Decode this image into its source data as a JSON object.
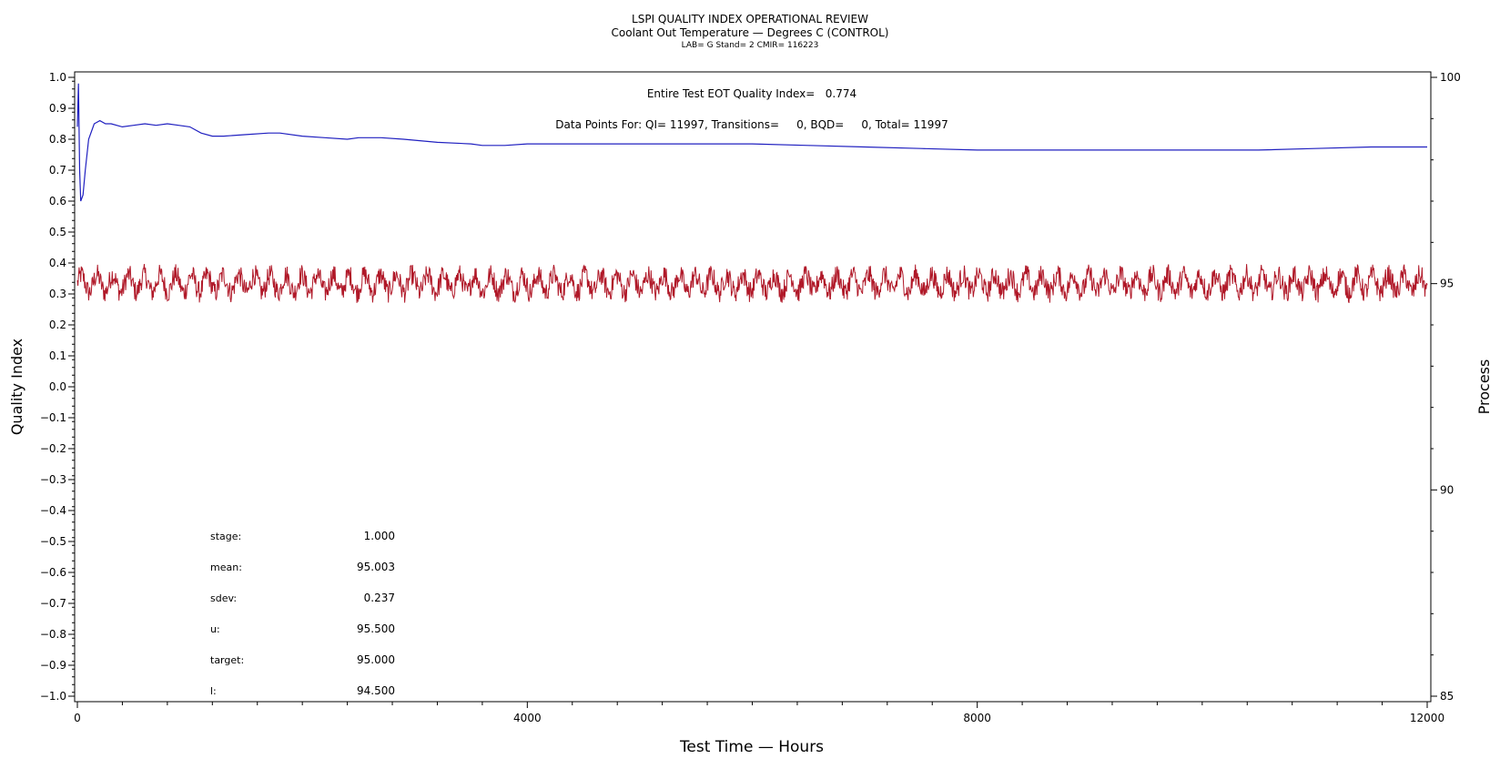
{
  "chart_data": {
    "type": "line",
    "title": "LSPI QUALITY INDEX OPERATIONAL REVIEW",
    "subtitle": "Coolant Out Temperature — Degrees C (CONTROL)",
    "subtitle2": "LAB= G Stand= 2 CMIR= 116223",
    "xlabel": "Test Time — Hours",
    "ylabel_left": "Quality Index",
    "ylabel_right": "Process",
    "xlim": [
      0,
      12000
    ],
    "ylim_left": [
      -1.0,
      1.0
    ],
    "ylim_right": [
      85,
      100
    ],
    "x_ticks": [
      0,
      4000,
      8000,
      12000
    ],
    "y_ticks_left": [
      "1.0",
      "0.9",
      "0.8",
      "0.7",
      "0.6",
      "0.5",
      "0.4",
      "0.3",
      "0.2",
      "0.1",
      "0.0",
      "−0.1",
      "−0.2",
      "−0.3",
      "−0.4",
      "−0.5",
      "−0.6",
      "−0.7",
      "−0.8",
      "−0.9",
      "−1.0"
    ],
    "y_ticks_right": [
      100,
      95,
      90,
      85
    ],
    "annotation_qi": "Entire Test EOT Quality Index=   0.774",
    "annotation_points": "Data Points For: QI= 11997, Transitions=     0, BQD=     0, Total= 11997",
    "stats": [
      {
        "label": "stage:",
        "value": "1.000"
      },
      {
        "label": "mean:",
        "value": "95.003"
      },
      {
        "label": "sdev:",
        "value": "0.237"
      },
      {
        "label": "u:",
        "value": "95.500"
      },
      {
        "label": "target:",
        "value": "95.000"
      },
      {
        "label": "l:",
        "value": "94.500"
      }
    ],
    "series": [
      {
        "axis": "left",
        "color": "#2020c0",
        "x": [
          0,
          10,
          20,
          30,
          50,
          70,
          100,
          150,
          200,
          250,
          300,
          400,
          500,
          600,
          700,
          800,
          900,
          1000,
          1100,
          1200,
          1300,
          1500,
          1700,
          1800,
          2000,
          2200,
          2400,
          2500,
          2700,
          2900,
          3200,
          3500,
          3600,
          3800,
          4000,
          4500,
          5000,
          5500,
          6000,
          6500,
          7000,
          7500,
          8000,
          8500,
          9000,
          9500,
          10000,
          10500,
          11000,
          11500,
          12000
        ],
        "y": [
          0.84,
          0.98,
          0.7,
          0.6,
          0.62,
          0.7,
          0.8,
          0.85,
          0.86,
          0.85,
          0.85,
          0.84,
          0.845,
          0.85,
          0.845,
          0.85,
          0.845,
          0.84,
          0.82,
          0.81,
          0.81,
          0.815,
          0.82,
          0.82,
          0.81,
          0.805,
          0.8,
          0.805,
          0.805,
          0.8,
          0.79,
          0.785,
          0.78,
          0.78,
          0.785,
          0.785,
          0.785,
          0.785,
          0.785,
          0.78,
          0.775,
          0.77,
          0.765,
          0.765,
          0.765,
          0.765,
          0.765,
          0.765,
          0.77,
          0.775,
          0.775
        ]
      },
      {
        "axis": "right",
        "color": "#b01828",
        "mean": 95.003,
        "sdev": 0.237,
        "x_start": 0,
        "x_end": 12000,
        "cycle_hours": 140
      }
    ]
  }
}
